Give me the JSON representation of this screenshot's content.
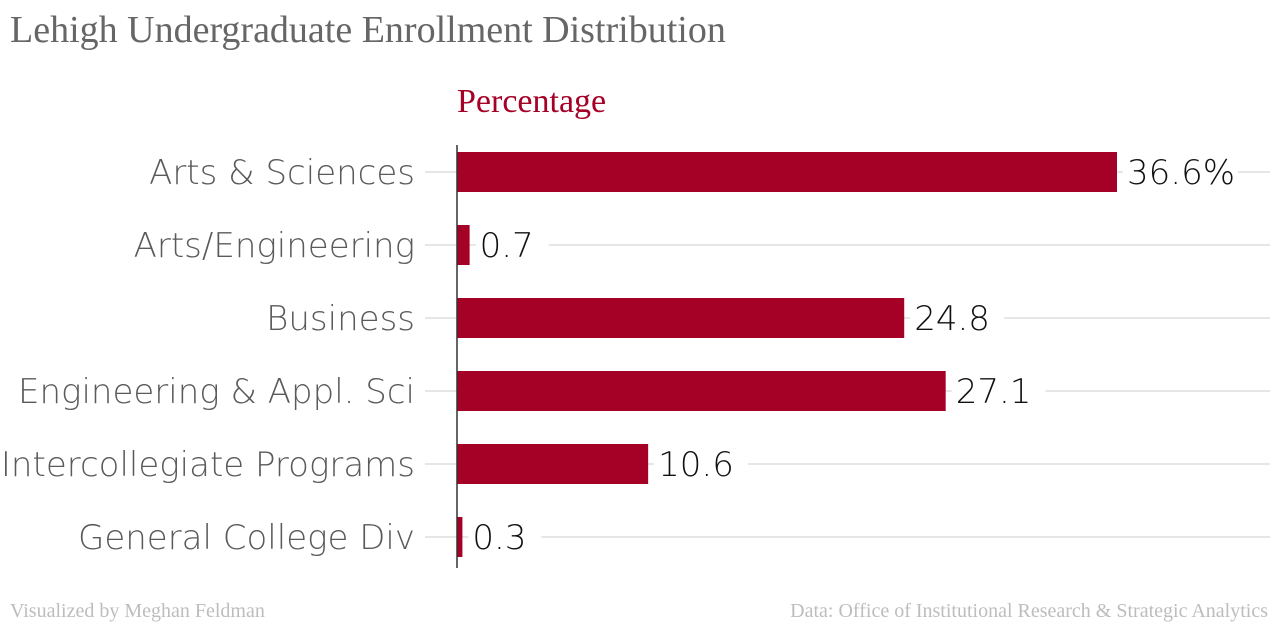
{
  "header": {
    "title": "Lehigh Undergraduate Enrollment Distribution"
  },
  "footer": {
    "credit": "Visualized by Meghan Feldman",
    "source": "Data: Office of Institutional Research & Strategic Analytics"
  },
  "colors": {
    "bar": "#a50026",
    "series_label": "#a50026",
    "gridline": "#dddddd",
    "axis": "#333333"
  },
  "chart_data": {
    "type": "bar",
    "orientation": "horizontal",
    "title": "Lehigh Undergraduate Enrollment Distribution",
    "categories": [
      "Arts & Sciences",
      "Arts/Engineering",
      "Business",
      "Engineering & Appl. Sci",
      "Intercollegiate Programs",
      "General College Div"
    ],
    "series": [
      {
        "name": "Percentage",
        "values": [
          36.6,
          0.7,
          24.8,
          27.1,
          10.6,
          0.3
        ],
        "value_labels": [
          "36.6%",
          "0.7",
          "24.8",
          "27.1",
          "10.6",
          "0.3"
        ]
      }
    ],
    "xlim": [
      0,
      36.6
    ],
    "grid": true,
    "legend": "top"
  }
}
